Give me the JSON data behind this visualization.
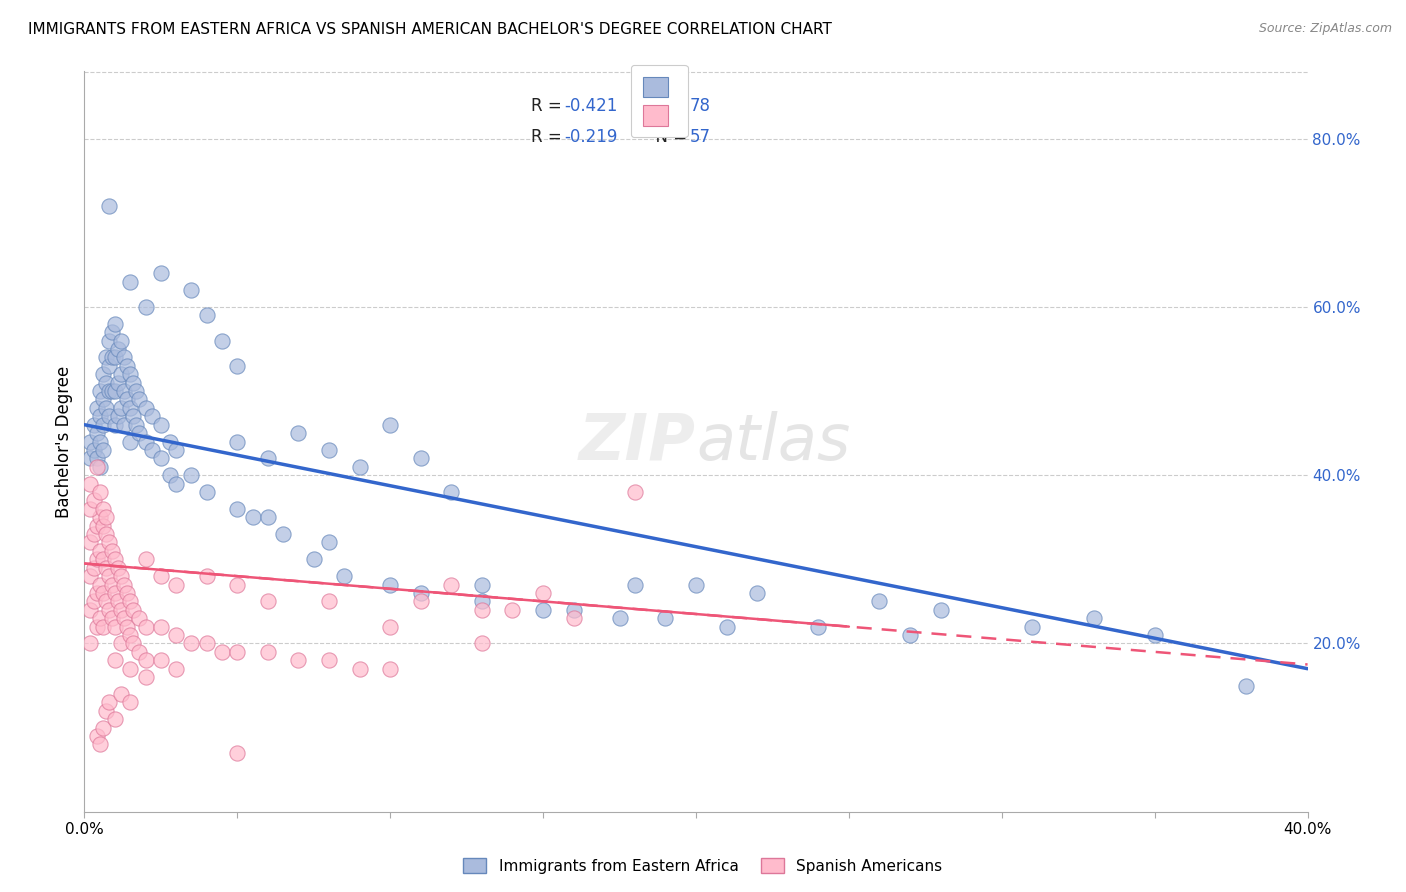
{
  "title": "IMMIGRANTS FROM EASTERN AFRICA VS SPANISH AMERICAN BACHELOR'S DEGREE CORRELATION CHART",
  "source": "Source: ZipAtlas.com",
  "ylabel": "Bachelor's Degree",
  "right_yticks": [
    "80.0%",
    "60.0%",
    "40.0%",
    "20.0%"
  ],
  "right_ytick_vals": [
    0.8,
    0.6,
    0.4,
    0.2
  ],
  "watermark": "ZIPatlas",
  "scatter_blue": [
    [
      0.002,
      0.44
    ],
    [
      0.002,
      0.42
    ],
    [
      0.003,
      0.46
    ],
    [
      0.003,
      0.43
    ],
    [
      0.004,
      0.48
    ],
    [
      0.004,
      0.45
    ],
    [
      0.004,
      0.42
    ],
    [
      0.005,
      0.5
    ],
    [
      0.005,
      0.47
    ],
    [
      0.005,
      0.44
    ],
    [
      0.005,
      0.41
    ],
    [
      0.006,
      0.52
    ],
    [
      0.006,
      0.49
    ],
    [
      0.006,
      0.46
    ],
    [
      0.006,
      0.43
    ],
    [
      0.007,
      0.54
    ],
    [
      0.007,
      0.51
    ],
    [
      0.007,
      0.48
    ],
    [
      0.008,
      0.56
    ],
    [
      0.008,
      0.53
    ],
    [
      0.008,
      0.5
    ],
    [
      0.008,
      0.47
    ],
    [
      0.009,
      0.57
    ],
    [
      0.009,
      0.54
    ],
    [
      0.009,
      0.5
    ],
    [
      0.01,
      0.58
    ],
    [
      0.01,
      0.54
    ],
    [
      0.01,
      0.5
    ],
    [
      0.01,
      0.46
    ],
    [
      0.011,
      0.55
    ],
    [
      0.011,
      0.51
    ],
    [
      0.011,
      0.47
    ],
    [
      0.012,
      0.56
    ],
    [
      0.012,
      0.52
    ],
    [
      0.012,
      0.48
    ],
    [
      0.013,
      0.54
    ],
    [
      0.013,
      0.5
    ],
    [
      0.013,
      0.46
    ],
    [
      0.014,
      0.53
    ],
    [
      0.014,
      0.49
    ],
    [
      0.015,
      0.52
    ],
    [
      0.015,
      0.48
    ],
    [
      0.015,
      0.44
    ],
    [
      0.016,
      0.51
    ],
    [
      0.016,
      0.47
    ],
    [
      0.017,
      0.5
    ],
    [
      0.017,
      0.46
    ],
    [
      0.018,
      0.49
    ],
    [
      0.018,
      0.45
    ],
    [
      0.02,
      0.48
    ],
    [
      0.02,
      0.44
    ],
    [
      0.022,
      0.47
    ],
    [
      0.022,
      0.43
    ],
    [
      0.025,
      0.46
    ],
    [
      0.025,
      0.42
    ],
    [
      0.028,
      0.44
    ],
    [
      0.028,
      0.4
    ],
    [
      0.03,
      0.43
    ],
    [
      0.03,
      0.39
    ],
    [
      0.035,
      0.4
    ],
    [
      0.04,
      0.38
    ],
    [
      0.05,
      0.36
    ],
    [
      0.055,
      0.35
    ],
    [
      0.065,
      0.33
    ],
    [
      0.075,
      0.3
    ],
    [
      0.085,
      0.28
    ],
    [
      0.1,
      0.27
    ],
    [
      0.11,
      0.26
    ],
    [
      0.13,
      0.25
    ],
    [
      0.15,
      0.24
    ],
    [
      0.16,
      0.24
    ],
    [
      0.175,
      0.23
    ],
    [
      0.19,
      0.23
    ],
    [
      0.21,
      0.22
    ],
    [
      0.24,
      0.22
    ],
    [
      0.27,
      0.21
    ],
    [
      0.31,
      0.22
    ],
    [
      0.35,
      0.21
    ],
    [
      0.38,
      0.15
    ],
    [
      0.05,
      0.44
    ],
    [
      0.06,
      0.42
    ],
    [
      0.07,
      0.45
    ],
    [
      0.08,
      0.43
    ],
    [
      0.09,
      0.41
    ],
    [
      0.1,
      0.46
    ],
    [
      0.11,
      0.42
    ],
    [
      0.12,
      0.38
    ],
    [
      0.2,
      0.27
    ],
    [
      0.22,
      0.26
    ],
    [
      0.26,
      0.25
    ],
    [
      0.008,
      0.72
    ],
    [
      0.035,
      0.62
    ],
    [
      0.025,
      0.64
    ],
    [
      0.04,
      0.59
    ],
    [
      0.045,
      0.56
    ],
    [
      0.05,
      0.53
    ],
    [
      0.015,
      0.63
    ],
    [
      0.02,
      0.6
    ],
    [
      0.06,
      0.35
    ],
    [
      0.08,
      0.32
    ],
    [
      0.13,
      0.27
    ],
    [
      0.18,
      0.27
    ],
    [
      0.28,
      0.24
    ],
    [
      0.33,
      0.23
    ]
  ],
  "scatter_pink": [
    [
      0.002,
      0.32
    ],
    [
      0.002,
      0.28
    ],
    [
      0.002,
      0.24
    ],
    [
      0.002,
      0.2
    ],
    [
      0.003,
      0.33
    ],
    [
      0.003,
      0.29
    ],
    [
      0.003,
      0.25
    ],
    [
      0.004,
      0.34
    ],
    [
      0.004,
      0.3
    ],
    [
      0.004,
      0.26
    ],
    [
      0.004,
      0.22
    ],
    [
      0.005,
      0.35
    ],
    [
      0.005,
      0.31
    ],
    [
      0.005,
      0.27
    ],
    [
      0.005,
      0.23
    ],
    [
      0.006,
      0.34
    ],
    [
      0.006,
      0.3
    ],
    [
      0.006,
      0.26
    ],
    [
      0.006,
      0.22
    ],
    [
      0.007,
      0.33
    ],
    [
      0.007,
      0.29
    ],
    [
      0.007,
      0.25
    ],
    [
      0.008,
      0.32
    ],
    [
      0.008,
      0.28
    ],
    [
      0.008,
      0.24
    ],
    [
      0.009,
      0.31
    ],
    [
      0.009,
      0.27
    ],
    [
      0.009,
      0.23
    ],
    [
      0.01,
      0.3
    ],
    [
      0.01,
      0.26
    ],
    [
      0.01,
      0.22
    ],
    [
      0.01,
      0.18
    ],
    [
      0.011,
      0.29
    ],
    [
      0.011,
      0.25
    ],
    [
      0.012,
      0.28
    ],
    [
      0.012,
      0.24
    ],
    [
      0.012,
      0.2
    ],
    [
      0.013,
      0.27
    ],
    [
      0.013,
      0.23
    ],
    [
      0.014,
      0.26
    ],
    [
      0.014,
      0.22
    ],
    [
      0.015,
      0.25
    ],
    [
      0.015,
      0.21
    ],
    [
      0.015,
      0.17
    ],
    [
      0.016,
      0.24
    ],
    [
      0.016,
      0.2
    ],
    [
      0.018,
      0.23
    ],
    [
      0.018,
      0.19
    ],
    [
      0.02,
      0.22
    ],
    [
      0.02,
      0.18
    ],
    [
      0.025,
      0.22
    ],
    [
      0.025,
      0.18
    ],
    [
      0.03,
      0.21
    ],
    [
      0.03,
      0.17
    ],
    [
      0.035,
      0.2
    ],
    [
      0.04,
      0.2
    ],
    [
      0.045,
      0.19
    ],
    [
      0.05,
      0.19
    ],
    [
      0.06,
      0.19
    ],
    [
      0.07,
      0.18
    ],
    [
      0.08,
      0.18
    ],
    [
      0.09,
      0.17
    ],
    [
      0.1,
      0.17
    ],
    [
      0.11,
      0.25
    ],
    [
      0.12,
      0.27
    ],
    [
      0.13,
      0.24
    ],
    [
      0.14,
      0.24
    ],
    [
      0.15,
      0.26
    ],
    [
      0.16,
      0.23
    ],
    [
      0.18,
      0.38
    ],
    [
      0.002,
      0.36
    ],
    [
      0.002,
      0.39
    ],
    [
      0.003,
      0.37
    ],
    [
      0.004,
      0.41
    ],
    [
      0.005,
      0.38
    ],
    [
      0.006,
      0.36
    ],
    [
      0.007,
      0.35
    ],
    [
      0.02,
      0.3
    ],
    [
      0.025,
      0.28
    ],
    [
      0.03,
      0.27
    ],
    [
      0.04,
      0.28
    ],
    [
      0.05,
      0.27
    ],
    [
      0.06,
      0.25
    ],
    [
      0.08,
      0.25
    ],
    [
      0.1,
      0.22
    ],
    [
      0.13,
      0.2
    ],
    [
      0.004,
      0.09
    ],
    [
      0.005,
      0.08
    ],
    [
      0.006,
      0.1
    ],
    [
      0.007,
      0.12
    ],
    [
      0.008,
      0.13
    ],
    [
      0.01,
      0.11
    ],
    [
      0.012,
      0.14
    ],
    [
      0.015,
      0.13
    ],
    [
      0.02,
      0.16
    ],
    [
      0.05,
      0.07
    ]
  ],
  "blue_line_x": [
    0.0,
    0.4
  ],
  "blue_line_y": [
    0.46,
    0.17
  ],
  "pink_line_x": [
    0.0,
    0.4
  ],
  "pink_line_y": [
    0.295,
    0.175
  ],
  "xlim": [
    0.0,
    0.4
  ],
  "ylim": [
    0.0,
    0.88
  ],
  "color_blue_fill": "#AABBDD",
  "color_blue_edge": "#6688BB",
  "color_pink_fill": "#FFBBCC",
  "color_pink_edge": "#DD7799",
  "color_blue_line": "#3366CC",
  "color_pink_line": "#EE5577",
  "background_color": "#FFFFFF",
  "grid_color": "#CCCCCC"
}
